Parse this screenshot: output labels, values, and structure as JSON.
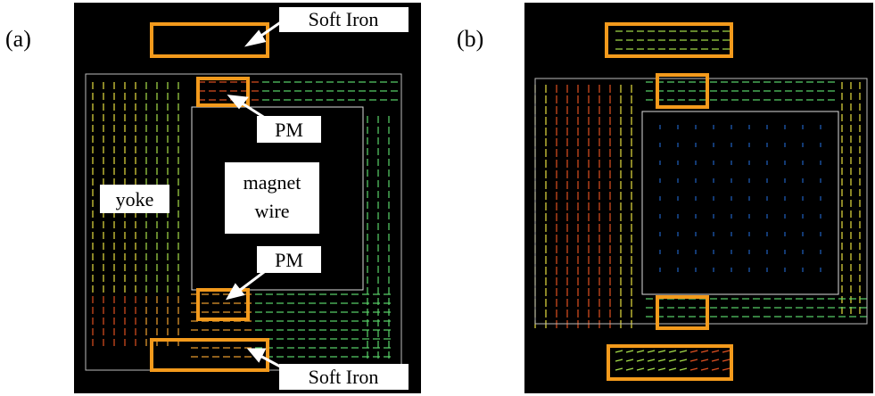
{
  "panels": [
    {
      "label": "(a)",
      "annotations": {
        "soft_iron_top": "Soft Iron",
        "pm_top": "PM",
        "yoke": "yoke",
        "magnet_wire": [
          "magnet",
          "wire"
        ],
        "pm_bottom": "PM",
        "soft_iron_bottom": "Soft Iron"
      }
    },
    {
      "label": "(b)"
    }
  ]
}
